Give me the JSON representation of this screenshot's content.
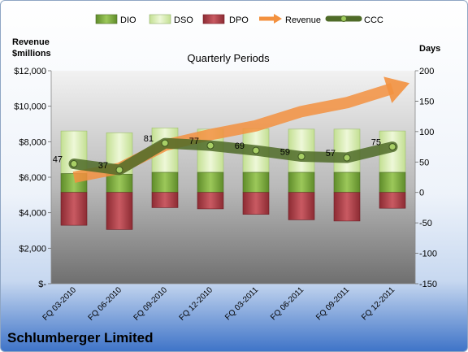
{
  "chart_data": {
    "type": "bar",
    "title": "",
    "subtitle": "Quarterly Periods",
    "company": "Schlumberger Limited",
    "ylabel_left": "Revenue\n$millions",
    "ylabel_right": "Days",
    "categories": [
      "FQ 03-2010",
      "FQ 06-2010",
      "FQ 09-2010",
      "FQ 12-2010",
      "FQ 03-2011",
      "FQ 06-2011",
      "FQ 09-2011",
      "FQ 12-2011"
    ],
    "ylim_right": [
      -150,
      200
    ],
    "right_ticks": [
      200,
      150,
      100,
      50,
      0,
      -50,
      -100,
      -150
    ],
    "ylim_left": [
      0,
      12000
    ],
    "left_ticks": [
      "$12,000",
      "$10,000",
      "$8,000",
      "$6,000",
      "$4,000",
      "$2,000",
      "$-"
    ],
    "series": [
      {
        "name": "DIO",
        "axis": "Days",
        "stacked": true,
        "color": "#7aa83c",
        "values": [
          31,
          30,
          33,
          33,
          33,
          33,
          33,
          33
        ]
      },
      {
        "name": "DSO",
        "axis": "Days",
        "stacked": true,
        "color": "#d8efb0",
        "values": [
          70,
          68,
          73,
          71,
          72,
          71,
          71,
          68
        ]
      },
      {
        "name": "DPO",
        "axis": "Days",
        "stacked": true,
        "color": "#b2404a",
        "values": [
          -54,
          -61,
          -25,
          -27,
          -36,
          -45,
          -47,
          -26
        ]
      },
      {
        "name": "Revenue",
        "axis": "Revenue",
        "type": "arrow",
        "color": "#f3913f",
        "values": [
          6000,
          6500,
          7800,
          8400,
          8900,
          9700,
          10200,
          11000
        ]
      },
      {
        "name": "CCC",
        "axis": "Days",
        "type": "line",
        "color": "#4f6b28",
        "values": [
          47,
          37,
          81,
          77,
          69,
          59,
          57,
          75
        ]
      }
    ],
    "legend": [
      "DIO",
      "DSO",
      "DPO",
      "Revenue",
      "CCC"
    ],
    "legend_position": "top",
    "grid": false
  }
}
